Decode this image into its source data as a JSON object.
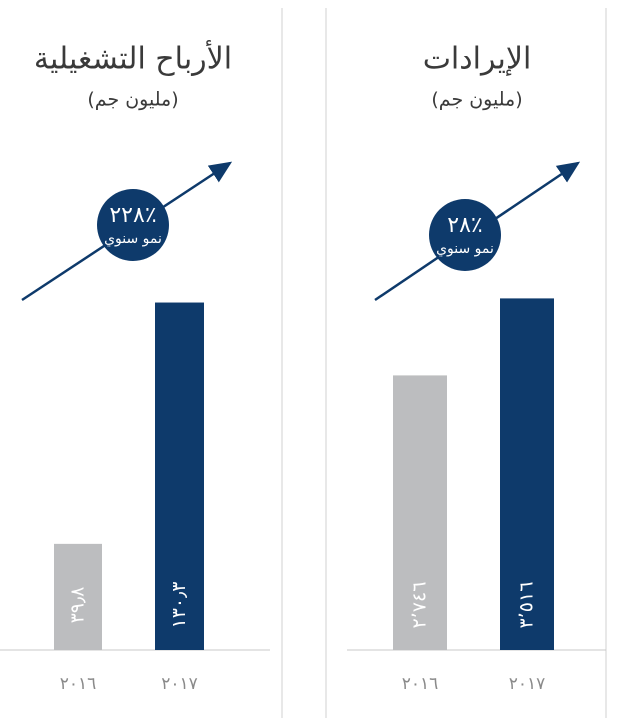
{
  "chart_data": [
    {
      "type": "bar",
      "title": "الأرباح التشغيلية",
      "subtitle": "(مليون جم)",
      "annotations": [
        "٢٢٨٪",
        "نمو سنوي"
      ],
      "categories": [
        "٢٠١٦",
        "٢٠١٧"
      ],
      "values": [
        39.8,
        130.3
      ],
      "value_labels": [
        "٣٩٫٨",
        "١٣٠٫٣"
      ],
      "colors": [
        "#bcbdbf",
        "#0e3a6b"
      ],
      "ylim": [
        0,
        150
      ]
    },
    {
      "type": "bar",
      "title": "الإيرادات",
      "subtitle": "(مليون جم)",
      "annotations": [
        "٢٨٪",
        "نمو سنوي"
      ],
      "categories": [
        "٢٠١٦",
        "٢٠١٧"
      ],
      "values": [
        2746,
        3516
      ],
      "value_labels": [
        "٢٬٧٤٦",
        "٣٬٥١٦"
      ],
      "colors": [
        "#bcbdbf",
        "#0e3a6b"
      ],
      "ylim": [
        0,
        4000
      ]
    }
  ]
}
